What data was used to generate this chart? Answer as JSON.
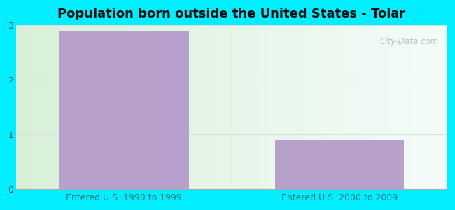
{
  "title": "Population born outside the United States - Tolar",
  "categories": [
    "Entered U.S. 1990 to 1999",
    "Entered U.S. 2000 to 2009"
  ],
  "values": [
    2.9,
    0.9
  ],
  "bar_color": "#b8a0cc",
  "ylim": [
    0,
    3
  ],
  "yticks": [
    0,
    1,
    2,
    3
  ],
  "outer_bg": "#00eeff",
  "xlabel_color": "#337777",
  "title_fontsize": 13,
  "title_color": "#111111",
  "tick_label_color": "#555555",
  "watermark": "City-Data.com",
  "grid_color": "#dddddd",
  "bg_left_color": "#d8f0d8",
  "bg_right_color": "#f0f8f8"
}
